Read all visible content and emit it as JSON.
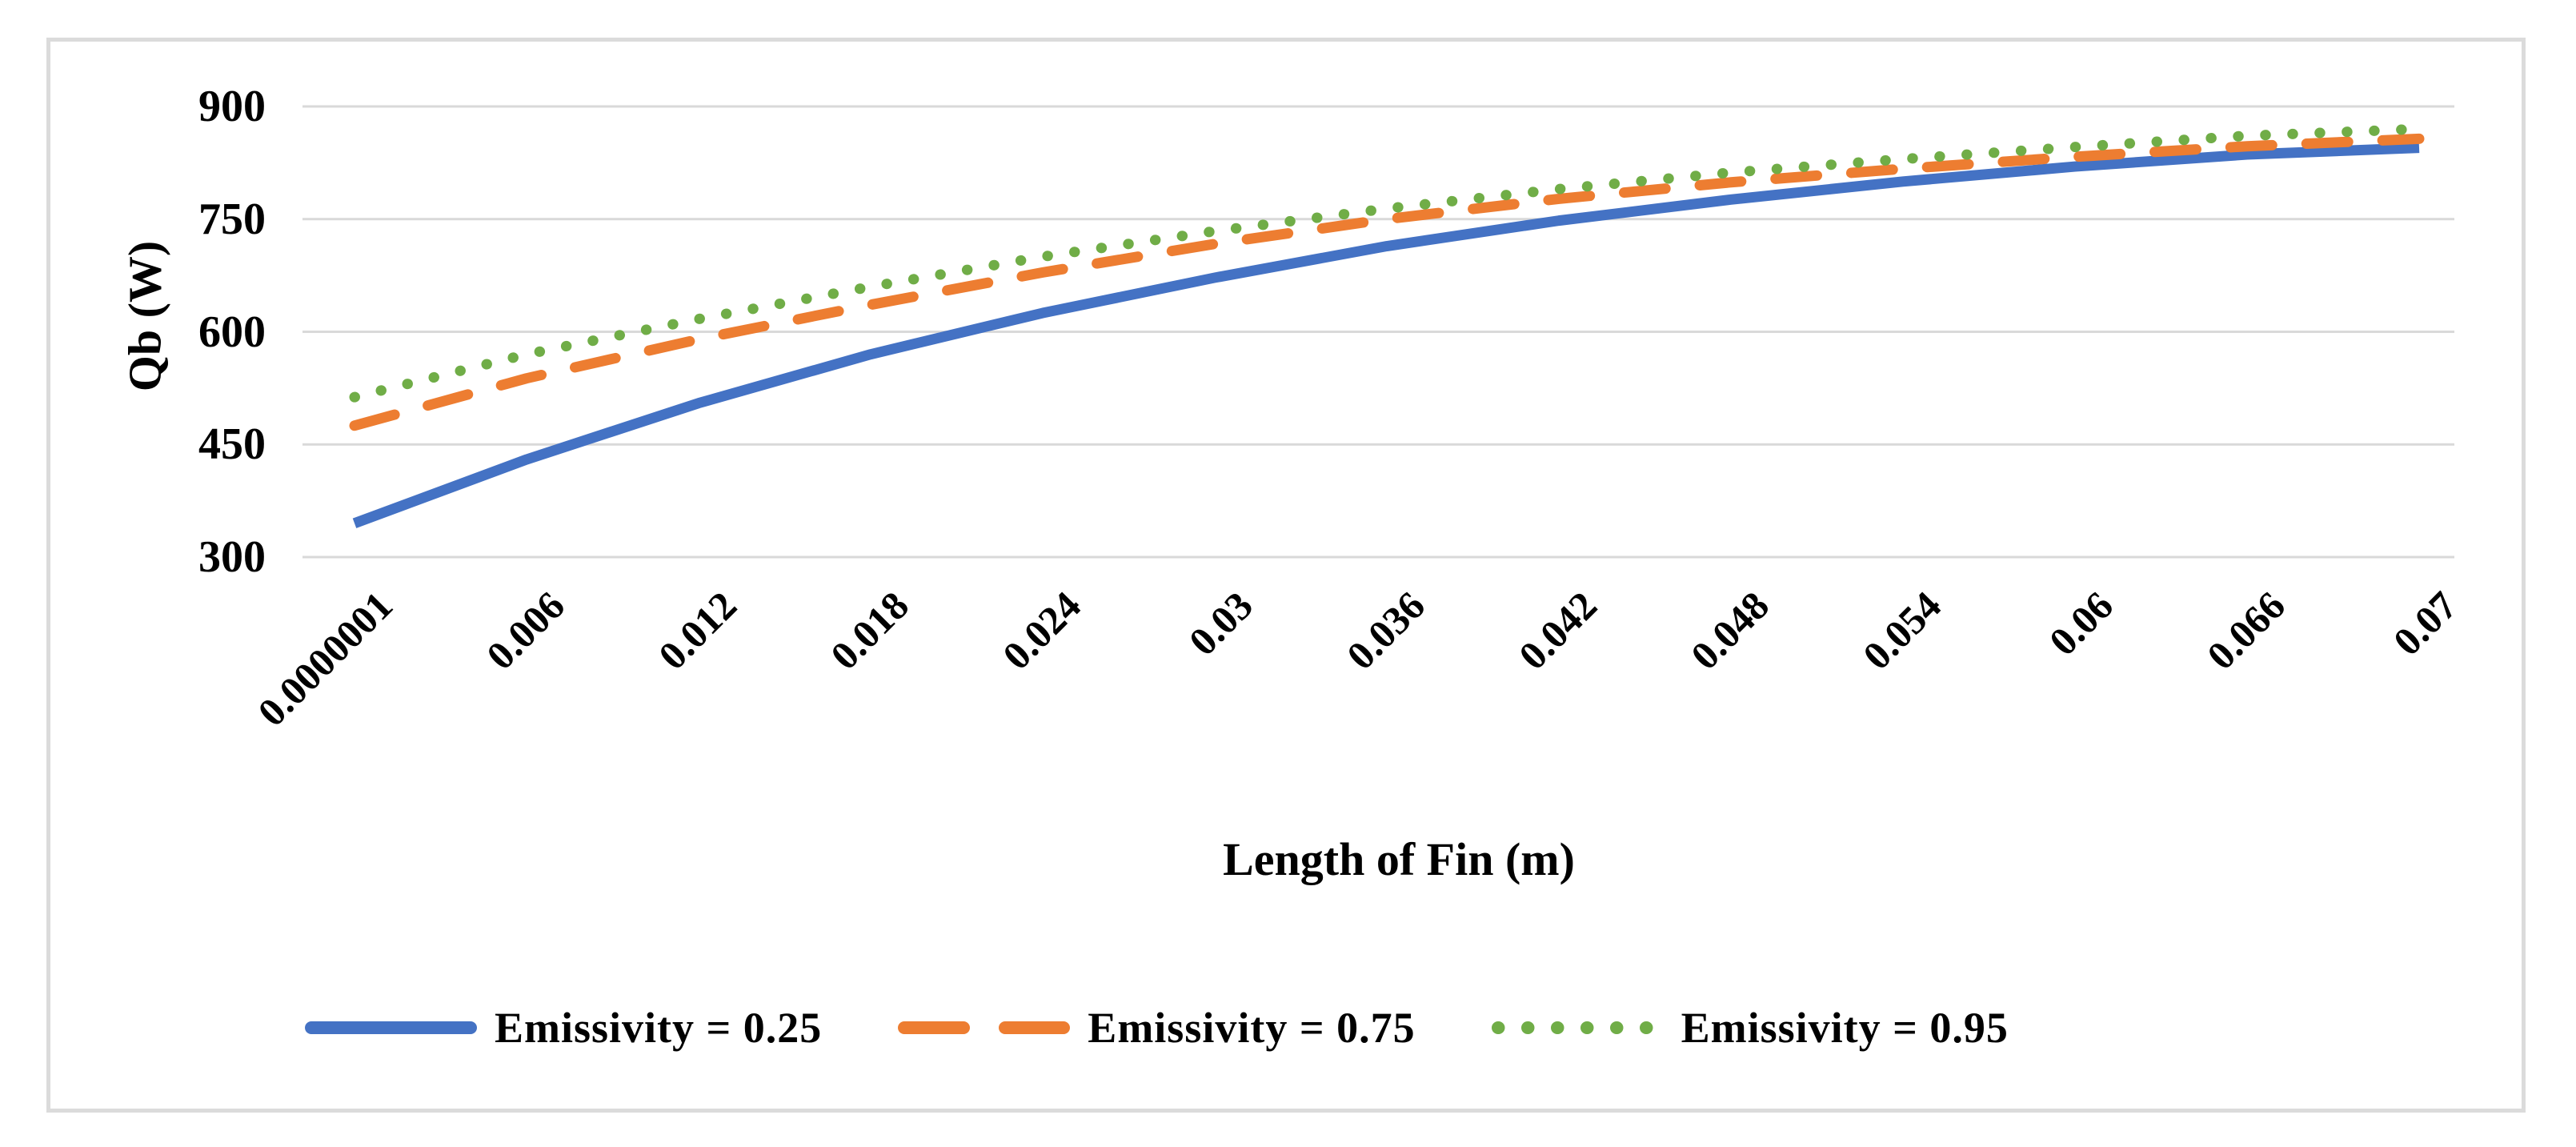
{
  "frame": {
    "border_color": "#DBDBDB",
    "background": "#FFFFFF"
  },
  "chart_data": {
    "type": "line",
    "title": "",
    "xlabel": "Length of Fin (m)",
    "ylabel": "Qb (W)",
    "categories": [
      "0.0000001",
      "0.006",
      "0.012",
      "0.018",
      "0.024",
      "0.03",
      "0.036",
      "0.042",
      "0.048",
      "0.054",
      "0.06",
      "0.066",
      "0.07"
    ],
    "y_ticks": [
      900,
      750,
      600,
      450,
      300
    ],
    "ylim": [
      300,
      900
    ],
    "grid": true,
    "gridline_color": "#D9D9D9",
    "legend_position": "bottom",
    "series": [
      {
        "name": "Emissivity = 0.25",
        "color": "#4472C4",
        "line_style": "solid",
        "values": [
          345,
          430,
          505,
          570,
          625,
          672,
          714,
          748,
          776,
          800,
          820,
          836,
          845
        ]
      },
      {
        "name": "Emissivity = 0.75",
        "color": "#ED7D31",
        "line_style": "dashed",
        "values": [
          475,
          538,
          590,
          636,
          679,
          717,
          750,
          777,
          799,
          817,
          833,
          847,
          857
        ]
      },
      {
        "name": "Emissivity = 0.95",
        "color": "#70AD47",
        "line_style": "dotted",
        "values": [
          513,
          570,
          617,
          660,
          700,
          734,
          764,
          790,
          812,
          830,
          846,
          861,
          870
        ]
      }
    ]
  }
}
